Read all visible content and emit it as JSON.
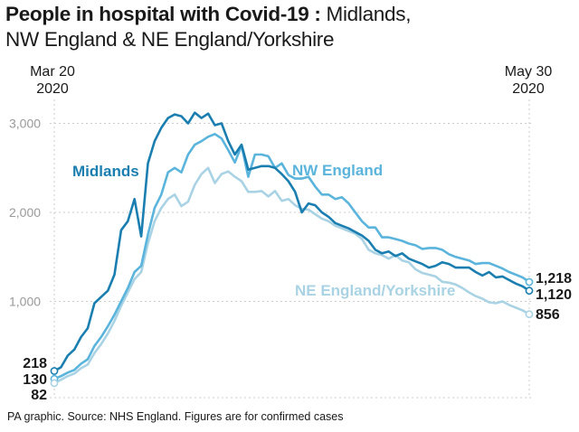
{
  "title": {
    "bold": "People in hospital with Covid-19 :",
    "regular_line1": " Midlands,",
    "line2": "NW England & NE England/Yorkshire"
  },
  "date_start": {
    "month_day": "Mar 20",
    "year": "2020"
  },
  "date_end": {
    "month_day": "May 30",
    "year": "2020"
  },
  "footer": "PA graphic. Source: NHS England. Figures are for confirmed cases",
  "colors": {
    "midlands": "#1a7fb0",
    "nw_england": "#5ab4dc",
    "ne_england": "#a9d3e4",
    "grid": "#cccccc",
    "tick_text": "#9a9a9a"
  },
  "chart_data": {
    "type": "line",
    "title": "People in hospital with Covid-19 : Midlands, NW England & NE England/Yorkshire",
    "xlabel": "",
    "ylabel": "",
    "x_start": "Mar 20 2020",
    "x_end": "May 30 2020",
    "ylim": [
      0,
      3300
    ],
    "yticks": [
      1000,
      2000,
      3000
    ],
    "ytick_labels": [
      "1,000",
      "2,000",
      "3,000"
    ],
    "grid": true,
    "series": [
      {
        "name": "Midlands",
        "label_text": "Midlands",
        "start_label": "218",
        "end_label": "1,120",
        "values": [
          218,
          260,
          390,
          460,
          600,
          700,
          980,
          1050,
          1120,
          1300,
          1800,
          1900,
          2150,
          1730,
          2550,
          2800,
          2950,
          3060,
          3100,
          3080,
          3000,
          3120,
          3060,
          3110,
          2980,
          3000,
          2800,
          2650,
          2760,
          2480,
          2500,
          2520,
          2520,
          2500,
          2430,
          2350,
          2230,
          2000,
          2100,
          2080,
          2000,
          1950,
          1880,
          1850,
          1820,
          1780,
          1740,
          1680,
          1580,
          1540,
          1560,
          1510,
          1540,
          1480,
          1450,
          1420,
          1380,
          1400,
          1440,
          1420,
          1380,
          1380,
          1380,
          1330,
          1290,
          1330,
          1270,
          1280,
          1240,
          1200,
          1170,
          1120
        ]
      },
      {
        "name": "NW England",
        "label_text": "NW England",
        "start_label": "130",
        "end_label": "1,218",
        "values": [
          130,
          160,
          200,
          230,
          300,
          350,
          500,
          600,
          720,
          850,
          1000,
          1150,
          1330,
          1400,
          1750,
          2050,
          2200,
          2450,
          2500,
          2450,
          2650,
          2760,
          2800,
          2850,
          2880,
          2830,
          2700,
          2560,
          2750,
          2400,
          2650,
          2650,
          2630,
          2500,
          2550,
          2420,
          2380,
          2380,
          2400,
          2290,
          2200,
          2200,
          2150,
          2170,
          2100,
          2000,
          1900,
          1830,
          1830,
          1720,
          1720,
          1700,
          1680,
          1650,
          1630,
          1590,
          1600,
          1600,
          1580,
          1530,
          1500,
          1480,
          1460,
          1420,
          1430,
          1430,
          1400,
          1370,
          1330,
          1300,
          1270,
          1218
        ]
      },
      {
        "name": "NE England/Yorkshire",
        "label_text": "NE England/Yorkshire",
        "start_label": "82",
        "end_label": "856",
        "values": [
          82,
          120,
          160,
          190,
          250,
          290,
          420,
          520,
          640,
          780,
          950,
          1100,
          1250,
          1330,
          1650,
          1900,
          2050,
          2150,
          2200,
          2070,
          2120,
          2310,
          2430,
          2500,
          2330,
          2430,
          2460,
          2400,
          2350,
          2230,
          2230,
          2240,
          2180,
          2240,
          2130,
          2150,
          2080,
          2040,
          2030,
          1980,
          1930,
          1900,
          1850,
          1820,
          1790,
          1760,
          1700,
          1580,
          1540,
          1520,
          1480,
          1520,
          1460,
          1440,
          1360,
          1320,
          1300,
          1280,
          1220,
          1210,
          1190,
          1150,
          1100,
          1060,
          1030,
          990,
          980,
          1000,
          960,
          930,
          900,
          856
        ]
      }
    ]
  }
}
